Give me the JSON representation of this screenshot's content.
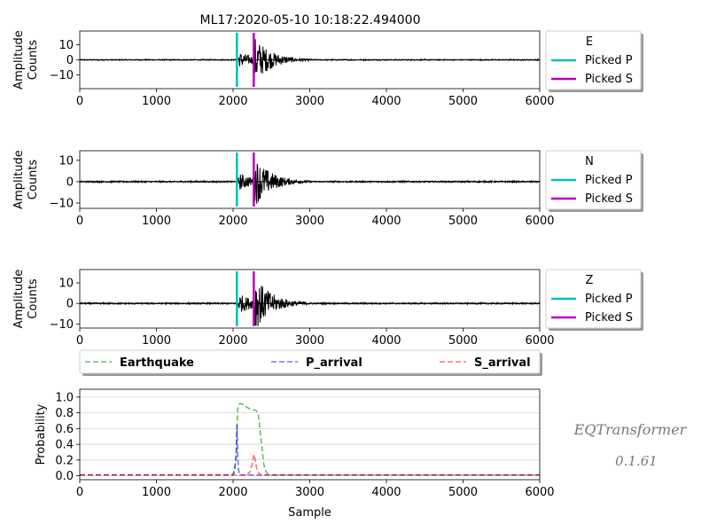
{
  "title": "ML17:2020-05-10 10:18:22.494000",
  "colors": {
    "trace": "#000000",
    "picked_p": "#00bfbf",
    "picked_s": "#bf00bf",
    "earthquake": "#008000",
    "p_arrival": "#0000ff",
    "s_arrival": "#ff0000",
    "grid": "#d3d3d3",
    "watermark": "#777777"
  },
  "watermark": {
    "name": "EQTransformer",
    "version": "0.1.61"
  },
  "chart_data": [
    {
      "type": "line",
      "channel": "E",
      "ylabel": "Amplitude\nCounts",
      "xlim": [
        0,
        6000
      ],
      "ylim": [
        -19,
        19
      ],
      "xticks": [
        0,
        1000,
        2000,
        3000,
        4000,
        5000,
        6000
      ],
      "yticks": [
        10,
        0,
        -10
      ],
      "picked_p": 2050,
      "picked_s": 2270,
      "peak_amplitude": 17,
      "legend": [
        "E",
        "Picked P",
        "Picked S"
      ],
      "legend_location": "outside-right"
    },
    {
      "type": "line",
      "channel": "N",
      "ylabel": "Amplitude\nCounts",
      "xlim": [
        0,
        6000
      ],
      "ylim": [
        -12.5,
        14.5
      ],
      "xticks": [
        0,
        1000,
        2000,
        3000,
        4000,
        5000,
        6000
      ],
      "yticks": [
        10,
        0,
        -10
      ],
      "picked_p": 2050,
      "picked_s": 2270,
      "peak_amplitude": 13,
      "legend": [
        "N",
        "Picked P",
        "Picked S"
      ],
      "legend_location": "outside-right"
    },
    {
      "type": "line",
      "channel": "Z",
      "ylabel": "Amplitude\nCounts",
      "xlim": [
        0,
        6000
      ],
      "ylim": [
        -12,
        16.5
      ],
      "xticks": [
        0,
        1000,
        2000,
        3000,
        4000,
        5000,
        6000
      ],
      "yticks": [
        10,
        0,
        -10
      ],
      "picked_p": 2050,
      "picked_s": 2270,
      "peak_amplitude": 15,
      "legend": [
        "Z",
        "Picked P",
        "Picked S"
      ],
      "legend_location": "outside-right"
    },
    {
      "type": "line",
      "xlabel": "Sample",
      "ylabel": "Probability",
      "xlim": [
        0,
        6000
      ],
      "ylim": [
        -0.05,
        1.1
      ],
      "xticks": [
        0,
        1000,
        2000,
        3000,
        4000,
        5000,
        6000
      ],
      "yticks": [
        1.0,
        0.8,
        0.6,
        0.4,
        0.2,
        0.0
      ],
      "grid": true,
      "legend_location": "top",
      "series": [
        {
          "name": "Earthquake",
          "x": [
            0,
            1950,
            2000,
            2040,
            2060,
            2090,
            2120,
            2150,
            2200,
            2250,
            2300,
            2330,
            2360,
            2400,
            2430,
            2460,
            2500,
            6000
          ],
          "y": [
            0.01,
            0.01,
            0.02,
            0.2,
            0.85,
            0.92,
            0.91,
            0.89,
            0.86,
            0.84,
            0.83,
            0.78,
            0.5,
            0.15,
            0.05,
            0.02,
            0.01,
            0.01
          ]
        },
        {
          "name": "P_arrival",
          "x": [
            0,
            2000,
            2020,
            2040,
            2050,
            2060,
            2070,
            2090,
            6000
          ],
          "y": [
            0.01,
            0.01,
            0.05,
            0.3,
            0.65,
            0.3,
            0.08,
            0.01,
            0.01
          ]
        },
        {
          "name": "S_arrival",
          "x": [
            0,
            2180,
            2220,
            2250,
            2270,
            2290,
            2310,
            2350,
            6000
          ],
          "y": [
            0.01,
            0.01,
            0.05,
            0.15,
            0.27,
            0.2,
            0.08,
            0.01,
            0.01
          ]
        }
      ]
    }
  ]
}
